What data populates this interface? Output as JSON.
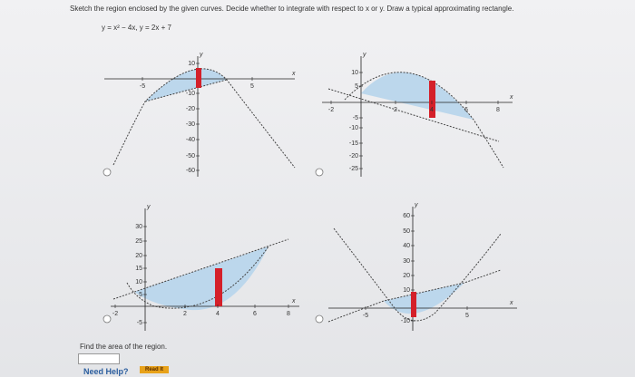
{
  "question": "Sketch the region enclosed by the given curves. Decide whether to integrate with respect to x or y. Draw a typical approximating rectangle.",
  "equation": "y = x² − 4x,  y = 2x + 7",
  "graphs": [
    {
      "x_label": "x",
      "y_label": "y",
      "x_ticks": [
        "-5",
        "5"
      ],
      "y_ticks": [
        "10",
        "-10",
        "-20",
        "-30",
        "-40",
        "-50",
        "-60"
      ]
    },
    {
      "x_label": "x",
      "y_label": "y",
      "x_ticks": [
        "-2",
        "2",
        "4",
        "6",
        "8"
      ],
      "y_ticks": [
        "10",
        "5",
        "-5",
        "-10",
        "-15",
        "-20",
        "-25"
      ]
    },
    {
      "x_label": "x",
      "y_label": "y",
      "x_ticks": [
        "-2",
        "2",
        "4",
        "6",
        "8"
      ],
      "y_ticks": [
        "30",
        "25",
        "20",
        "15",
        "10",
        "5",
        "-5"
      ]
    },
    {
      "x_label": "x",
      "y_label": "y",
      "x_ticks": [
        "-5",
        "5"
      ],
      "y_ticks": [
        "60",
        "50",
        "40",
        "30",
        "20",
        "10",
        "-10"
      ]
    }
  ],
  "prompt": "Find the area of the region.",
  "need_help": "Need Help?",
  "read_it": "Read It"
}
